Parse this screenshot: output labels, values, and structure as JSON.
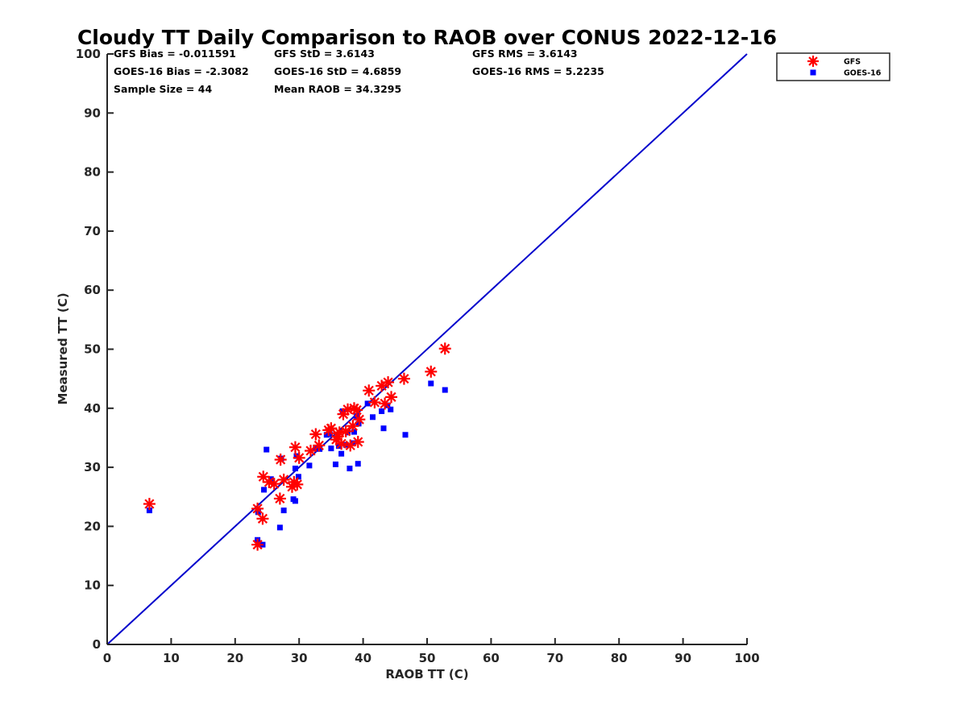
{
  "chart_data": {
    "type": "scatter",
    "title": "Cloudy TT Daily Comparison to RAOB over CONUS 2022-12-16",
    "xlabel": "RAOB TT (C)",
    "ylabel": "Measured TT (C)",
    "xlim": [
      0,
      100
    ],
    "ylim": [
      0,
      100
    ],
    "x_ticks": [
      "0",
      "10",
      "20",
      "30",
      "40",
      "50",
      "60",
      "70",
      "80",
      "90",
      "100"
    ],
    "y_ticks": [
      "0",
      "10",
      "20",
      "30",
      "40",
      "50",
      "60",
      "70",
      "80",
      "90",
      "100"
    ],
    "grid": false,
    "legend_position": "top-right, outside plot",
    "reference_line": {
      "from": [
        0,
        0
      ],
      "to": [
        100,
        100
      ],
      "color": "#0000cc"
    },
    "stats": [
      [
        "GFS Bias = -0.011591",
        "GFS StD = 3.6143",
        "GFS RMS = 3.6143"
      ],
      [
        "GOES-16 Bias = -2.3082",
        "GOES-16 StD = 4.6859",
        "GOES-16 RMS = 5.2235"
      ],
      [
        "Sample Size = 44",
        "Mean RAOB = 34.3295",
        ""
      ]
    ],
    "series": [
      {
        "name": "GFS",
        "marker": "asterisk",
        "color": "#ff0000",
        "points": [
          [
            6.6,
            23.8
          ],
          [
            23.5,
            23.0
          ],
          [
            23.5,
            16.9
          ],
          [
            24.3,
            21.3
          ],
          [
            24.4,
            28.4
          ],
          [
            25.3,
            27.5
          ],
          [
            26.1,
            27.2
          ],
          [
            27.0,
            24.7
          ],
          [
            27.1,
            31.3
          ],
          [
            27.6,
            27.9
          ],
          [
            28.9,
            26.7
          ],
          [
            29.2,
            27.5
          ],
          [
            29.4,
            33.4
          ],
          [
            29.7,
            27.1
          ],
          [
            30.0,
            31.6
          ],
          [
            31.8,
            32.8
          ],
          [
            32.6,
            35.6
          ],
          [
            33.1,
            33.7
          ],
          [
            34.6,
            36.3
          ],
          [
            35.0,
            36.6
          ],
          [
            35.8,
            34.7
          ],
          [
            36.0,
            35.2
          ],
          [
            36.3,
            35.9
          ],
          [
            36.6,
            34.0
          ],
          [
            36.9,
            39.0
          ],
          [
            37.3,
            36.1
          ],
          [
            37.6,
            39.8
          ],
          [
            38.0,
            33.7
          ],
          [
            38.4,
            37.0
          ],
          [
            38.6,
            40.0
          ],
          [
            39.0,
            39.7
          ],
          [
            39.2,
            34.3
          ],
          [
            39.4,
            38.1
          ],
          [
            40.9,
            43.0
          ],
          [
            41.8,
            41.0
          ],
          [
            42.9,
            43.8
          ],
          [
            43.4,
            40.8
          ],
          [
            43.9,
            44.4
          ],
          [
            44.4,
            41.9
          ],
          [
            46.4,
            45.0
          ],
          [
            50.6,
            46.2
          ],
          [
            52.8,
            50.1
          ]
        ]
      },
      {
        "name": "GOES-16",
        "marker": "square",
        "color": "#0000ff",
        "points": [
          [
            6.6,
            22.7
          ],
          [
            23.5,
            17.7
          ],
          [
            23.6,
            22.4
          ],
          [
            24.3,
            16.9
          ],
          [
            24.5,
            26.2
          ],
          [
            24.9,
            33.0
          ],
          [
            25.6,
            28.0
          ],
          [
            27.0,
            19.8
          ],
          [
            27.2,
            31.5
          ],
          [
            27.6,
            22.7
          ],
          [
            29.1,
            24.6
          ],
          [
            29.4,
            24.3
          ],
          [
            29.4,
            29.8
          ],
          [
            29.6,
            31.9
          ],
          [
            29.9,
            28.4
          ],
          [
            31.6,
            30.3
          ],
          [
            32.6,
            33.2
          ],
          [
            33.2,
            33.1
          ],
          [
            34.3,
            35.5
          ],
          [
            34.8,
            35.6
          ],
          [
            35.0,
            33.2
          ],
          [
            35.7,
            30.5
          ],
          [
            36.2,
            33.6
          ],
          [
            36.6,
            32.3
          ],
          [
            36.8,
            39.5
          ],
          [
            37.3,
            33.8
          ],
          [
            37.6,
            35.9
          ],
          [
            37.9,
            29.8
          ],
          [
            38.4,
            34.1
          ],
          [
            38.6,
            36.0
          ],
          [
            39.0,
            38.7
          ],
          [
            39.2,
            30.6
          ],
          [
            39.3,
            37.4
          ],
          [
            40.7,
            40.8
          ],
          [
            41.5,
            38.5
          ],
          [
            42.9,
            39.5
          ],
          [
            43.2,
            36.6
          ],
          [
            43.8,
            40.5
          ],
          [
            44.3,
            39.8
          ],
          [
            46.6,
            35.5
          ],
          [
            50.6,
            44.2
          ],
          [
            52.8,
            43.1
          ]
        ]
      }
    ]
  }
}
